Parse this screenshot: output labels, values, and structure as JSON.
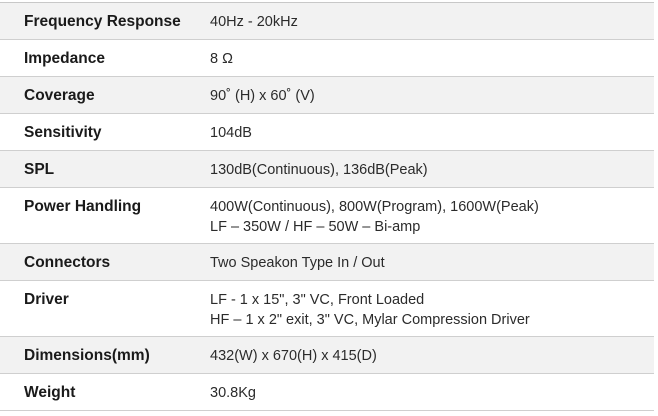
{
  "specs": [
    {
      "label": "Frequency Response",
      "lines": [
        "40Hz  -  20kHz"
      ]
    },
    {
      "label": "Impedance",
      "lines": [
        "8 Ω"
      ]
    },
    {
      "label": "Coverage",
      "lines": [
        "90˚ (H) x 60˚ (V)"
      ]
    },
    {
      "label": "Sensitivity",
      "lines": [
        "104dB"
      ]
    },
    {
      "label": "SPL",
      "lines": [
        "130dB(Continuous), 136dB(Peak)"
      ]
    },
    {
      "label": "Power Handling",
      "lines": [
        "400W(Continuous), 800W(Program), 1600W(Peak)",
        "LF – 350W / HF – 50W – Bi-amp"
      ]
    },
    {
      "label": "Connectors",
      "lines": [
        "Two Speakon Type In / Out"
      ]
    },
    {
      "label": "Driver",
      "lines": [
        "LF  -  1 x 15\", 3\" VC, Front Loaded",
        "HF – 1 x 2\" exit, 3\" VC, Mylar Compression Driver"
      ]
    },
    {
      "label": "Dimensions(mm)",
      "lines": [
        "432(W) x 670(H) x 415(D)"
      ]
    },
    {
      "label": "Weight",
      "lines": [
        "30.8Kg"
      ]
    }
  ]
}
